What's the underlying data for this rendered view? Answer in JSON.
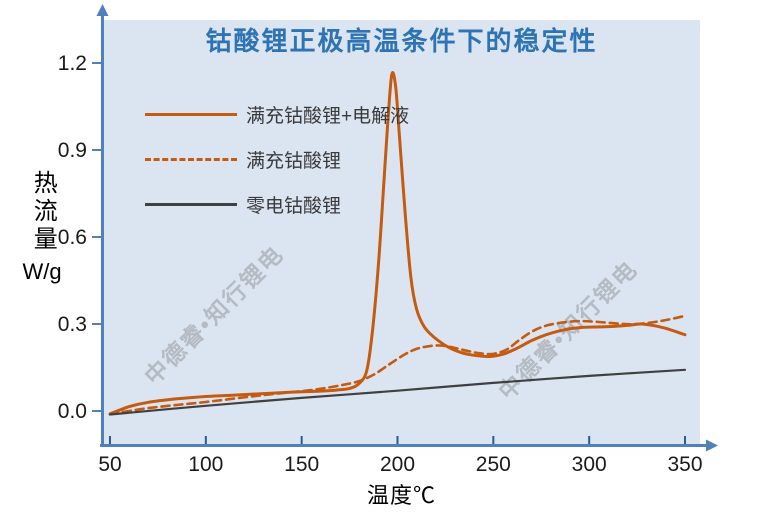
{
  "title": "钴酸锂正极高温条件下的稳定性",
  "colors": {
    "title": "#2e74b5",
    "axis": "#4f81bd",
    "tick": "#2e5a8f",
    "plot_bg": "#dbe5f1",
    "tick_label": "#1a1a1a",
    "legend_text": "#3a3a3a",
    "watermark": "rgba(125,125,125,0.40)",
    "series_orange": "#c55a11",
    "series_dark": "#404040"
  },
  "watermark": {
    "text": "中德睿•知行锂电",
    "instances": 2
  },
  "x_axis": {
    "label": "温度℃"
  },
  "y_axis": {
    "label": "热流量",
    "unit": "W/g"
  },
  "chart_data": {
    "type": "line",
    "title": "钴酸锂正极高温条件下的稳定性",
    "xlabel": "温度℃",
    "ylabel": "热流量 W/g",
    "xlim": [
      50,
      350
    ],
    "ylim": [
      0.0,
      1.2
    ],
    "grid": false,
    "legend_position": "top-left",
    "x_ticks": [
      50,
      100,
      150,
      200,
      250,
      300,
      350
    ],
    "y_ticks": [
      "0.0",
      "0.3",
      "0.6",
      "0.9",
      "1.2"
    ],
    "series": [
      {
        "name": "满充钴酸锂+电解液",
        "style": "solid",
        "color": "#c55a11",
        "width": 3,
        "points": [
          [
            50,
            -0.01
          ],
          [
            60,
            0.015
          ],
          [
            70,
            0.03
          ],
          [
            85,
            0.042
          ],
          [
            100,
            0.05
          ],
          [
            115,
            0.055
          ],
          [
            130,
            0.06
          ],
          [
            145,
            0.065
          ],
          [
            158,
            0.068
          ],
          [
            168,
            0.072
          ],
          [
            175,
            0.078
          ],
          [
            180,
            0.095
          ],
          [
            184,
            0.14
          ],
          [
            187,
            0.28
          ],
          [
            190,
            0.5
          ],
          [
            193,
            0.8
          ],
          [
            195,
            1.0
          ],
          [
            197,
            1.16
          ],
          [
            199,
            1.12
          ],
          [
            201,
            0.95
          ],
          [
            204,
            0.68
          ],
          [
            207,
            0.46
          ],
          [
            210,
            0.35
          ],
          [
            214,
            0.29
          ],
          [
            219,
            0.255
          ],
          [
            226,
            0.222
          ],
          [
            233,
            0.202
          ],
          [
            240,
            0.192
          ],
          [
            248,
            0.188
          ],
          [
            255,
            0.196
          ],
          [
            262,
            0.215
          ],
          [
            270,
            0.243
          ],
          [
            278,
            0.264
          ],
          [
            287,
            0.28
          ],
          [
            296,
            0.288
          ],
          [
            305,
            0.29
          ],
          [
            314,
            0.292
          ],
          [
            321,
            0.296
          ],
          [
            327,
            0.3
          ],
          [
            334,
            0.294
          ],
          [
            341,
            0.283
          ],
          [
            350,
            0.263
          ]
        ]
      },
      {
        "name": "满充钴酸锂",
        "style": "dashed",
        "color": "#c55a11",
        "width": 2.6,
        "points": [
          [
            50,
            -0.01
          ],
          [
            60,
            0.0
          ],
          [
            70,
            0.01
          ],
          [
            85,
            0.021
          ],
          [
            100,
            0.031
          ],
          [
            115,
            0.043
          ],
          [
            130,
            0.055
          ],
          [
            145,
            0.065
          ],
          [
            158,
            0.075
          ],
          [
            170,
            0.088
          ],
          [
            180,
            0.103
          ],
          [
            188,
            0.127
          ],
          [
            196,
            0.162
          ],
          [
            203,
            0.192
          ],
          [
            209,
            0.212
          ],
          [
            215,
            0.222
          ],
          [
            222,
            0.226
          ],
          [
            229,
            0.219
          ],
          [
            236,
            0.208
          ],
          [
            243,
            0.199
          ],
          [
            250,
            0.197
          ],
          [
            257,
            0.212
          ],
          [
            264,
            0.247
          ],
          [
            271,
            0.277
          ],
          [
            278,
            0.295
          ],
          [
            287,
            0.306
          ],
          [
            296,
            0.31
          ],
          [
            305,
            0.307
          ],
          [
            314,
            0.302
          ],
          [
            322,
            0.299
          ],
          [
            330,
            0.303
          ],
          [
            338,
            0.311
          ],
          [
            344,
            0.319
          ],
          [
            350,
            0.328
          ]
        ]
      },
      {
        "name": "零电钴酸锂",
        "style": "solid",
        "color": "#404040",
        "width": 2.2,
        "points": [
          [
            50,
            -0.012
          ],
          [
            100,
            0.018
          ],
          [
            150,
            0.045
          ],
          [
            200,
            0.07
          ],
          [
            250,
            0.097
          ],
          [
            300,
            0.121
          ],
          [
            350,
            0.142
          ]
        ]
      }
    ]
  }
}
